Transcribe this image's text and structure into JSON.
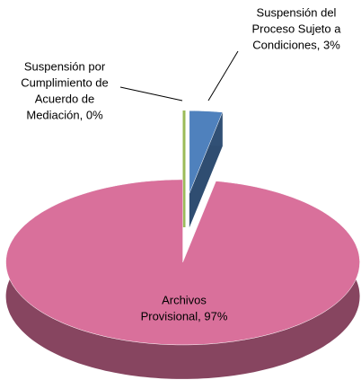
{
  "chart_data": {
    "type": "pie3d",
    "labels": [
      [
        "Suspensión del",
        "Proceso Sujeto a",
        "Condiciones, 3%"
      ],
      [
        "Archivos",
        "Provisional, 97%"
      ],
      [
        "Suspensión por",
        "Cumplimiento de",
        "Acuerdo de",
        "Mediación, 0%"
      ]
    ],
    "values": [
      3,
      97,
      0
    ],
    "colors": [
      "#4f81bd",
      "#d9709b",
      "#9bbb59"
    ]
  }
}
